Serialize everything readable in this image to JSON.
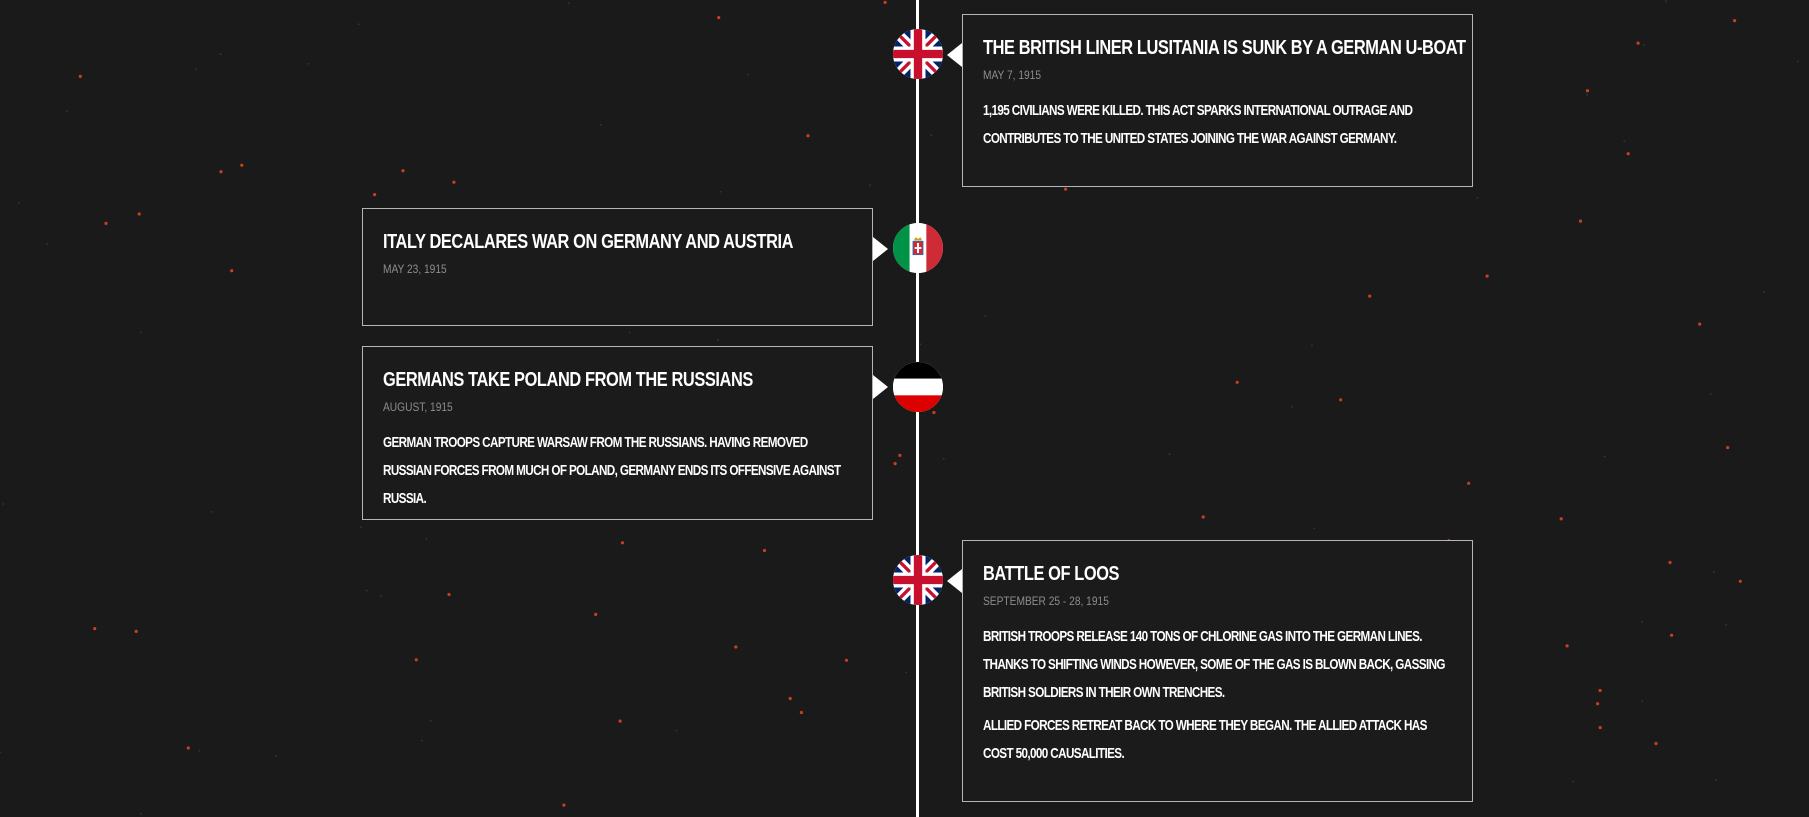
{
  "timeline": {
    "events": [
      {
        "country": "united-kingdom",
        "flag_icon": "union-jack-flag-icon",
        "side": "right",
        "title": "The British liner Lusitania is sunk by a German U-boat",
        "date": "May 7, 1915",
        "paragraphs": [
          "1,195 civilians were killed. This act sparks international outrage and contributes to the United States joining the war against Germany."
        ]
      },
      {
        "country": "italy",
        "flag_icon": "italian-flag-icon",
        "side": "left",
        "title": "Italy decalares war on Germany and Austria",
        "date": "May 23, 1915",
        "paragraphs": []
      },
      {
        "country": "germany",
        "flag_icon": "german-empire-flag-icon",
        "side": "left",
        "title": "Germans take Poland from the Russians",
        "date": "August, 1915",
        "paragraphs": [
          "German troops capture Warsaw from the Russians. Having removed Russian forces from much of Poland, Germany ends its offensive against Russia."
        ]
      },
      {
        "country": "united-kingdom",
        "flag_icon": "union-jack-flag-icon",
        "side": "right",
        "title": "Battle of Loos",
        "date": "September 25 - 28, 1915",
        "paragraphs": [
          "British troops release 140 tons of chlorine gas into the German lines. Thanks to shifting winds however, some of the gas is blown back, gassing British soldiers in their own trenches.",
          "Allied forces retreat back to where they began. The Allied attack has cost 50,000 causalities."
        ]
      }
    ]
  },
  "colors": {
    "background": "#1a1a1a",
    "line": "#ffffff",
    "card_border": "#b5b5b5",
    "date_text": "#8d8d8d",
    "particle": "#e8461e"
  }
}
